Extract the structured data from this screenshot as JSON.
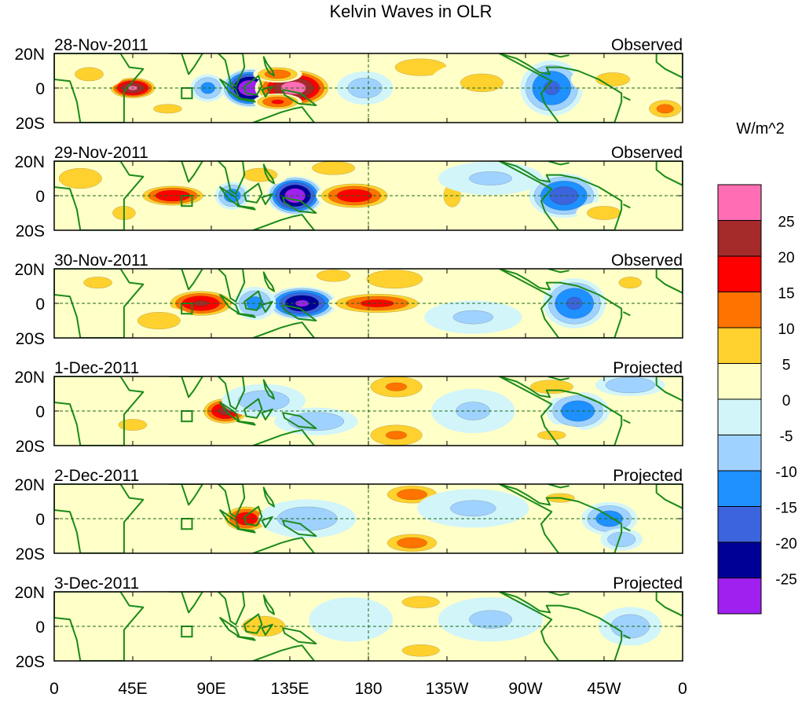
{
  "chart_data": {
    "type": "heatmap",
    "title": "Kelvin Waves in OLR",
    "colorbar": {
      "units": "W/m^2",
      "tick_labels": [
        "25",
        "20",
        "15",
        "10",
        "5",
        "0",
        "-5",
        "-10",
        "-15",
        "-20",
        "-25"
      ],
      "bins_top_to_bottom": [
        {
          "range": "> 25",
          "color": "#ff6eb4"
        },
        {
          "range": "20 to 25",
          "color": "#a52a2a"
        },
        {
          "range": "15 to 20",
          "color": "#ff0000"
        },
        {
          "range": "10 to 15",
          "color": "#ff7300"
        },
        {
          "range": "5 to 10",
          "color": "#ffd12e"
        },
        {
          "range": "0 to 5",
          "color": "#ffffc8"
        },
        {
          "range": "-5 to 0",
          "color": "#d2f5fa"
        },
        {
          "range": "-10 to -5",
          "color": "#a0d2ff"
        },
        {
          "range": "-15 to -10",
          "color": "#1e90ff"
        },
        {
          "range": "-20 to -15",
          "color": "#3c64dc"
        },
        {
          "range": "-25 to -20",
          "color": "#000096"
        },
        {
          "range": "< -25",
          "color": "#a020f0"
        }
      ]
    },
    "x_axis": {
      "range_deg_east": [
        0,
        360
      ],
      "ticks": [
        "0",
        "45E",
        "90E",
        "135E",
        "180",
        "135W",
        "90W",
        "45W",
        "0"
      ]
    },
    "y_axis": {
      "range": [
        "20S",
        "20N"
      ],
      "ticks": [
        "20N",
        "0",
        "20S"
      ]
    },
    "reference_lines": [
      "equator",
      "180 meridian"
    ],
    "panels": [
      {
        "date": "28-Nov-2011",
        "kind": "Observed",
        "anomalies": [
          {
            "lon": 45,
            "lat": 0,
            "value": 26,
            "wx": 7,
            "wy": 4
          },
          {
            "lon": 88,
            "lat": 0,
            "value": -12,
            "wx": 5,
            "wy": 5
          },
          {
            "lon": 112,
            "lat": 0,
            "value": -30,
            "wx": 8,
            "wy": 7
          },
          {
            "lon": 137,
            "lat": 0,
            "value": 28,
            "wx": 11,
            "wy": 7
          },
          {
            "lon": 128,
            "lat": -8,
            "value": 16,
            "wx": 7,
            "wy": 3
          },
          {
            "lon": 128,
            "lat": 8,
            "value": 14,
            "wx": 7,
            "wy": 3
          },
          {
            "lon": 178,
            "lat": 0,
            "value": -8,
            "wx": 8,
            "wy": 6
          },
          {
            "lon": 210,
            "lat": 12,
            "value": 8,
            "wx": 12,
            "wy": 5
          },
          {
            "lon": 245,
            "lat": 3,
            "value": 6,
            "wx": 15,
            "wy": 8
          },
          {
            "lon": 285,
            "lat": 0,
            "value": -16,
            "wx": 9,
            "wy": 10
          },
          {
            "lon": 350,
            "lat": -12,
            "value": 12,
            "wx": 6,
            "wy": 4
          },
          {
            "lon": 20,
            "lat": 8,
            "value": 6,
            "wx": 10,
            "wy": 6
          },
          {
            "lon": 65,
            "lat": -12,
            "value": 6,
            "wx": 10,
            "wy": 4
          },
          {
            "lon": 320,
            "lat": 5,
            "value": 6,
            "wx": 12,
            "wy": 6
          }
        ]
      },
      {
        "date": "29-Nov-2011",
        "kind": "Observed",
        "anomalies": [
          {
            "lon": 68,
            "lat": 0,
            "value": 20,
            "wx": 10,
            "wy": 4
          },
          {
            "lon": 102,
            "lat": 0,
            "value": -13,
            "wx": 5,
            "wy": 5
          },
          {
            "lon": 138,
            "lat": 0,
            "value": -29,
            "wx": 8,
            "wy": 7
          },
          {
            "lon": 172,
            "lat": 0,
            "value": 19,
            "wx": 11,
            "wy": 5
          },
          {
            "lon": 118,
            "lat": 12,
            "value": 8,
            "wx": 8,
            "wy": 4
          },
          {
            "lon": 160,
            "lat": 16,
            "value": 8,
            "wx": 10,
            "wy": 4
          },
          {
            "lon": 228,
            "lat": 0,
            "value": 6,
            "wx": 6,
            "wy": 10
          },
          {
            "lon": 292,
            "lat": 0,
            "value": -18,
            "wx": 10,
            "wy": 8
          },
          {
            "lon": 315,
            "lat": -10,
            "value": 8,
            "wx": 8,
            "wy": 4
          },
          {
            "lon": 15,
            "lat": 10,
            "value": 8,
            "wx": 10,
            "wy": 6
          },
          {
            "lon": 40,
            "lat": -10,
            "value": 6,
            "wx": 8,
            "wy": 6
          },
          {
            "lon": 250,
            "lat": 10,
            "value": -6,
            "wx": 15,
            "wy": 6
          }
        ]
      },
      {
        "date": "30-Nov-2011",
        "kind": "Observed",
        "anomalies": [
          {
            "lon": 84,
            "lat": 0,
            "value": 21,
            "wx": 10,
            "wy": 5
          },
          {
            "lon": 142,
            "lat": 0,
            "value": -26,
            "wx": 10,
            "wy": 6
          },
          {
            "lon": 115,
            "lat": 0,
            "value": -12,
            "wx": 6,
            "wy": 6
          },
          {
            "lon": 185,
            "lat": 0,
            "value": 17,
            "wx": 14,
            "wy": 4
          },
          {
            "lon": 195,
            "lat": 14,
            "value": 9,
            "wx": 12,
            "wy": 5
          },
          {
            "lon": 160,
            "lat": 16,
            "value": 7,
            "wx": 9,
            "wy": 4
          },
          {
            "lon": 298,
            "lat": 0,
            "value": -16,
            "wx": 9,
            "wy": 9
          },
          {
            "lon": 60,
            "lat": -10,
            "value": 8,
            "wx": 10,
            "wy": 5
          },
          {
            "lon": 25,
            "lat": 12,
            "value": 6,
            "wx": 10,
            "wy": 5
          },
          {
            "lon": 330,
            "lat": 12,
            "value": 6,
            "wx": 8,
            "wy": 5
          },
          {
            "lon": 240,
            "lat": -8,
            "value": -6,
            "wx": 14,
            "wy": 6
          }
        ]
      },
      {
        "date": "1-Dec-2011",
        "kind": "Projected",
        "anomalies": [
          {
            "lon": 98,
            "lat": 0,
            "value": 22,
            "wx": 7,
            "wy": 5
          },
          {
            "lon": 120,
            "lat": 6,
            "value": -8,
            "wx": 12,
            "wy": 6
          },
          {
            "lon": 150,
            "lat": -6,
            "value": -9,
            "wx": 12,
            "wy": 5
          },
          {
            "lon": 196,
            "lat": 14,
            "value": 11,
            "wx": 10,
            "wy": 5
          },
          {
            "lon": 196,
            "lat": -14,
            "value": 11,
            "wx": 10,
            "wy": 5
          },
          {
            "lon": 300,
            "lat": 0,
            "value": -14,
            "wx": 9,
            "wy": 7
          },
          {
            "lon": 330,
            "lat": 15,
            "value": -10,
            "wx": 10,
            "wy": 4
          },
          {
            "lon": 285,
            "lat": 14,
            "value": 8,
            "wx": 10,
            "wy": 4
          },
          {
            "lon": 285,
            "lat": -14,
            "value": 6,
            "wx": 10,
            "wy": 4
          },
          {
            "lon": 45,
            "lat": -8,
            "value": 6,
            "wx": 10,
            "wy": 5
          },
          {
            "lon": 240,
            "lat": 0,
            "value": -6,
            "wx": 12,
            "wy": 8
          }
        ]
      },
      {
        "date": "2-Dec-2011",
        "kind": "Projected",
        "anomalies": [
          {
            "lon": 110,
            "lat": 0,
            "value": 19,
            "wx": 7,
            "wy": 5
          },
          {
            "lon": 145,
            "lat": 0,
            "value": -8,
            "wx": 14,
            "wy": 7
          },
          {
            "lon": 205,
            "lat": 14,
            "value": 13,
            "wx": 9,
            "wy": 4
          },
          {
            "lon": 205,
            "lat": -14,
            "value": 13,
            "wx": 9,
            "wy": 4
          },
          {
            "lon": 318,
            "lat": 0,
            "value": -13,
            "wx": 8,
            "wy": 6
          },
          {
            "lon": 325,
            "lat": -12,
            "value": -9,
            "wx": 6,
            "wy": 4
          },
          {
            "lon": 290,
            "lat": 12,
            "value": 6,
            "wx": 10,
            "wy": 4
          },
          {
            "lon": 240,
            "lat": 6,
            "value": -6,
            "wx": 16,
            "wy": 7
          },
          {
            "lon": 60,
            "lat": 0,
            "value": 4,
            "wx": 18,
            "wy": 12
          }
        ]
      },
      {
        "date": "3-Dec-2011",
        "kind": "Projected",
        "anomalies": [
          {
            "lon": 120,
            "lat": 0,
            "value": 8,
            "wx": 10,
            "wy": 6
          },
          {
            "lon": 210,
            "lat": 14,
            "value": 7,
            "wx": 10,
            "wy": 4
          },
          {
            "lon": 210,
            "lat": -14,
            "value": 7,
            "wx": 10,
            "wy": 4
          },
          {
            "lon": 330,
            "lat": 0,
            "value": -8,
            "wx": 9,
            "wy": 7
          },
          {
            "lon": 250,
            "lat": 4,
            "value": -6,
            "wx": 15,
            "wy": 8
          },
          {
            "lon": 60,
            "lat": 0,
            "value": 4,
            "wx": 20,
            "wy": 12
          },
          {
            "lon": 170,
            "lat": 4,
            "value": -5,
            "wx": 12,
            "wy": 8
          }
        ]
      }
    ]
  }
}
